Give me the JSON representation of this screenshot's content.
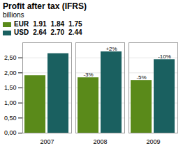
{
  "chart_data": {
    "type": "bar",
    "title": "Profit after tax (IFRS)",
    "subtitle": "billions",
    "categories": [
      "2007",
      "2008",
      "2009"
    ],
    "series": [
      {
        "name": "EUR",
        "color": "#5a8a1a",
        "values": [
          1.91,
          1.84,
          1.75
        ],
        "value_labels": [
          "1.91",
          "1.84",
          "1.75"
        ],
        "annotations": [
          null,
          "-3%",
          "-5%"
        ]
      },
      {
        "name": "USD",
        "color": "#1a6060",
        "values": [
          2.64,
          2.7,
          2.44
        ],
        "value_labels": [
          "2.64",
          "2.70",
          "2.44"
        ],
        "annotations": [
          null,
          "+2%",
          "-10%"
        ]
      }
    ],
    "ylim": [
      0,
      3.0
    ],
    "yticks": [
      {
        "value": 0.0,
        "label": "0,00"
      },
      {
        "value": 0.5,
        "label": "0,50"
      },
      {
        "value": 1.0,
        "label": "1,00"
      },
      {
        "value": 1.5,
        "label": "1,50"
      },
      {
        "value": 2.0,
        "label": "2,00"
      },
      {
        "value": 2.5,
        "label": "2,50"
      }
    ],
    "grid": true,
    "legend": "top",
    "data_labels": true
  }
}
